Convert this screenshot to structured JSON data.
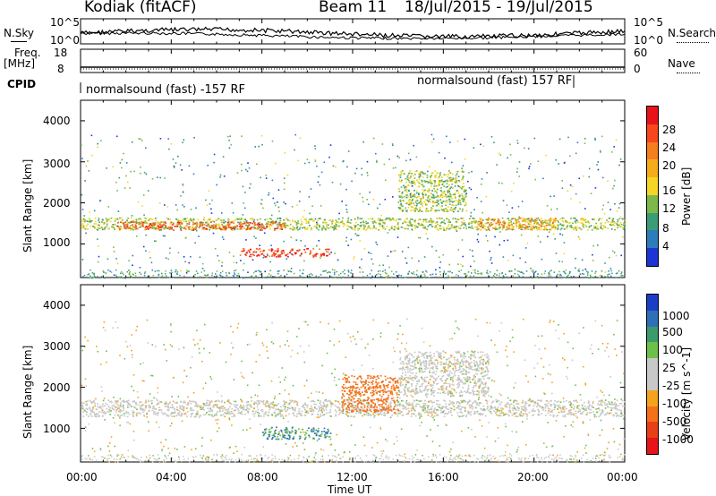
{
  "header": {
    "station": "Kodiak (fitACF)",
    "beam": "Beam 11",
    "dates": "18/Jul/2015 - 19/Jul/2015"
  },
  "panels": {
    "nsky": {
      "label": "N.Sky",
      "right_label": "N.Search",
      "ytick_top": "10^5",
      "ytick_bottom": "10^0",
      "rtick_top": "10^5",
      "rtick_bottom": "10^0"
    },
    "freq": {
      "label_line1": "Freq.",
      "label_line2": "[MHz]",
      "right_label": "Nave",
      "ytick_top": "18",
      "ytick_bottom": "8",
      "rtick_top": "60",
      "rtick_bottom": "0"
    },
    "cpid": {
      "label": "CPID",
      "mode1": "normalsound (fast) -157 RF",
      "mode2": "normalsound (fast) 157 RF"
    },
    "power": {
      "ylabel": "Slant Range [km]",
      "yticks": [
        "4000",
        "3000",
        "2000",
        "1000"
      ],
      "colorbar_label": "Power [dB]",
      "colorbar_ticks": [
        "28",
        "24",
        "20",
        "16",
        "12",
        "8",
        "4"
      ],
      "colorbar_colors": [
        "#e8121a",
        "#f7481c",
        "#f57f1c",
        "#f5ac1c",
        "#f6d625",
        "#7cb84a",
        "#3a9d77",
        "#2e7dbb",
        "#1c35d4"
      ]
    },
    "velocity": {
      "ylabel": "Slant Range [km]",
      "yticks": [
        "4000",
        "3000",
        "2000",
        "1000"
      ],
      "colorbar_label": "Velocity [m s^-1]",
      "colorbar_ticks": [
        "1000",
        "500",
        "100",
        "25",
        "-25",
        "-100",
        "-500",
        "-1000"
      ],
      "colorbar_colors": [
        "#1a3fc6",
        "#2d70b8",
        "#3d9a6c",
        "#6fc04a",
        "#c8c8c8",
        "#c8c8c8",
        "#f5a21c",
        "#f57018",
        "#e83f16",
        "#e8141a"
      ]
    }
  },
  "xaxis": {
    "label": "Time UT",
    "ticks": [
      "00:00",
      "04:00",
      "08:00",
      "12:00",
      "16:00",
      "20:00",
      "00:00"
    ]
  },
  "chart_data": [
    {
      "type": "line",
      "title": "N.Sky / N.Search",
      "x_range_hours": [
        0,
        24
      ],
      "ylim": [
        "10^0",
        "10^5"
      ],
      "log_scale": true
    },
    {
      "type": "line",
      "title": "Freq. / Nave",
      "x_range_hours": [
        0,
        24
      ],
      "ylim": [
        8,
        18
      ],
      "ylim_right": [
        0,
        60
      ]
    },
    {
      "type": "heatmap",
      "title": "Power [dB]",
      "x_range_hours": [
        0,
        24
      ],
      "ylim": [
        180,
        4500
      ],
      "colorscale": [
        4,
        28
      ],
      "features": [
        {
          "x_hours": [
            0,
            24
          ],
          "range_km": [
            1350,
            1650
          ],
          "level_dB": 14
        },
        {
          "x_hours": [
            1.5,
            9
          ],
          "range_km": [
            1350,
            1550
          ],
          "level_dB": 24
        },
        {
          "x_hours": [
            7,
            11
          ],
          "range_km": [
            700,
            900
          ],
          "level_dB": 26
        },
        {
          "x_hours": [
            14,
            17
          ],
          "range_km": [
            1800,
            2800
          ],
          "level_dB": 14
        },
        {
          "x_hours": [
            17.5,
            21
          ],
          "range_km": [
            1350,
            1650
          ],
          "level_dB": 20
        }
      ]
    },
    {
      "type": "heatmap",
      "title": "Velocity [m s^-1]",
      "x_range_hours": [
        0,
        24
      ],
      "ylim": [
        180,
        4500
      ],
      "colorscale": [
        -1000,
        1000
      ],
      "features": [
        {
          "x_hours": [
            0,
            24
          ],
          "range_km": [
            1300,
            1700
          ],
          "velocity": 0
        },
        {
          "x_hours": [
            8,
            11
          ],
          "range_km": [
            750,
            1050
          ],
          "velocity": 100
        },
        {
          "x_hours": [
            11.5,
            14
          ],
          "range_km": [
            1400,
            2300
          ],
          "velocity": -400
        },
        {
          "x_hours": [
            14,
            18
          ],
          "range_km": [
            1800,
            2900
          ],
          "velocity": 0
        }
      ]
    }
  ]
}
